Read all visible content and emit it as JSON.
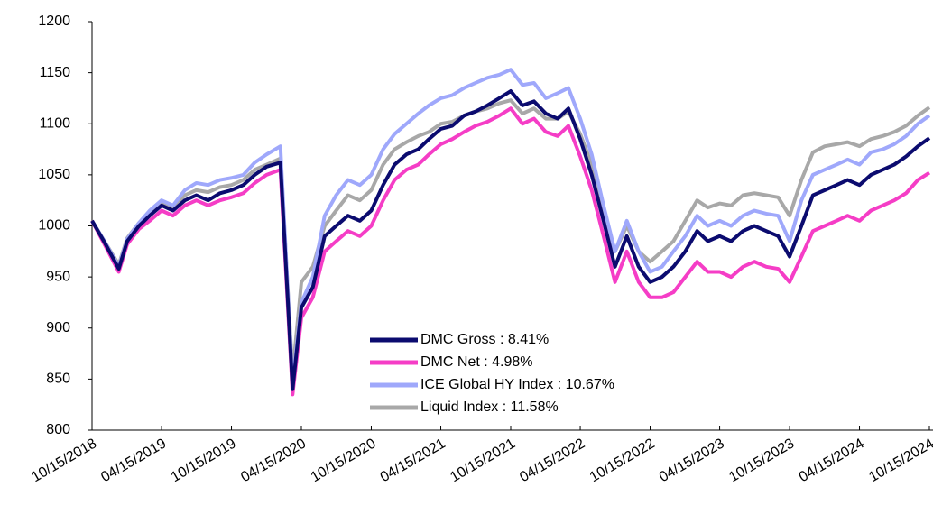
{
  "chart_data": {
    "type": "line",
    "x": [
      "10/15/2018",
      "11/15/2018",
      "12/24/2018",
      "01/15/2019",
      "02/15/2019",
      "03/15/2019",
      "04/15/2019",
      "05/15/2019",
      "06/15/2019",
      "07/15/2019",
      "08/15/2019",
      "09/15/2019",
      "10/15/2019",
      "11/15/2019",
      "12/15/2019",
      "01/15/2020",
      "02/20/2020",
      "03/23/2020",
      "04/15/2020",
      "05/15/2020",
      "06/15/2020",
      "07/15/2020",
      "08/15/2020",
      "09/15/2020",
      "10/15/2020",
      "11/15/2020",
      "12/15/2020",
      "01/15/2021",
      "02/15/2021",
      "03/15/2021",
      "04/15/2021",
      "05/15/2021",
      "06/15/2021",
      "07/15/2021",
      "08/15/2021",
      "09/15/2021",
      "10/15/2021",
      "11/15/2021",
      "12/15/2021",
      "01/15/2022",
      "02/15/2022",
      "03/15/2022",
      "04/15/2022",
      "05/15/2022",
      "06/15/2022",
      "07/15/2022",
      "08/15/2022",
      "09/15/2022",
      "10/15/2022",
      "11/15/2022",
      "12/15/2022",
      "01/15/2023",
      "02/15/2023",
      "03/15/2023",
      "04/15/2023",
      "05/15/2023",
      "06/15/2023",
      "07/15/2023",
      "08/15/2023",
      "09/15/2023",
      "10/15/2023",
      "11/15/2023",
      "12/15/2023",
      "01/15/2024",
      "02/15/2024",
      "03/15/2024",
      "04/15/2024",
      "05/15/2024",
      "06/15/2024",
      "07/15/2024",
      "08/15/2024",
      "09/15/2024",
      "10/15/2024"
    ],
    "series": [
      {
        "name": "DMC Gross : 8.41%",
        "color": "#0b0b6f",
        "values": [
          1005,
          985,
          958,
          985,
          1000,
          1010,
          1020,
          1015,
          1025,
          1030,
          1025,
          1032,
          1035,
          1040,
          1050,
          1058,
          1062,
          840,
          920,
          940,
          990,
          1000,
          1010,
          1005,
          1015,
          1040,
          1060,
          1070,
          1075,
          1085,
          1095,
          1098,
          1108,
          1112,
          1118,
          1125,
          1132,
          1118,
          1122,
          1110,
          1105,
          1115,
          1085,
          1050,
          1005,
          960,
          990,
          960,
          945,
          950,
          960,
          975,
          995,
          985,
          990,
          985,
          995,
          1000,
          995,
          990,
          970,
          1000,
          1030,
          1035,
          1040,
          1045,
          1040,
          1050,
          1055,
          1060,
          1068,
          1078,
          1086
        ]
      },
      {
        "name": "DMC Net : 4.98%",
        "color": "#f53dc6",
        "values": [
          1005,
          983,
          955,
          982,
          997,
          1005,
          1015,
          1010,
          1020,
          1025,
          1020,
          1025,
          1028,
          1032,
          1042,
          1050,
          1055,
          835,
          910,
          930,
          975,
          985,
          995,
          990,
          1000,
          1025,
          1045,
          1055,
          1060,
          1070,
          1080,
          1085,
          1092,
          1098,
          1102,
          1108,
          1115,
          1100,
          1105,
          1092,
          1088,
          1098,
          1068,
          1035,
          990,
          945,
          975,
          945,
          930,
          930,
          935,
          950,
          965,
          955,
          955,
          950,
          960,
          965,
          960,
          958,
          945,
          970,
          995,
          1000,
          1005,
          1010,
          1005,
          1015,
          1020,
          1025,
          1032,
          1045,
          1052
        ]
      },
      {
        "name": "ICE Global HY Index : 10.67%",
        "color": "#9fa8fb",
        "values": [
          1005,
          986,
          960,
          987,
          1003,
          1015,
          1025,
          1020,
          1035,
          1042,
          1040,
          1045,
          1047,
          1050,
          1062,
          1070,
          1078,
          845,
          925,
          950,
          1010,
          1030,
          1045,
          1040,
          1050,
          1075,
          1090,
          1100,
          1110,
          1118,
          1125,
          1128,
          1135,
          1140,
          1145,
          1148,
          1153,
          1138,
          1140,
          1125,
          1130,
          1135,
          1105,
          1070,
          1020,
          975,
          1005,
          975,
          955,
          960,
          975,
          990,
          1010,
          1000,
          1005,
          1000,
          1010,
          1015,
          1012,
          1010,
          985,
          1025,
          1050,
          1055,
          1060,
          1065,
          1060,
          1072,
          1075,
          1080,
          1088,
          1100,
          1108
        ]
      },
      {
        "name": "Liquid Index : 11.58%",
        "color": "#a8a8a8",
        "values": [
          1005,
          986,
          962,
          988,
          1003,
          1013,
          1022,
          1018,
          1030,
          1035,
          1033,
          1038,
          1040,
          1045,
          1055,
          1060,
          1066,
          855,
          945,
          960,
          1000,
          1015,
          1030,
          1025,
          1035,
          1060,
          1075,
          1082,
          1088,
          1092,
          1100,
          1102,
          1108,
          1112,
          1115,
          1120,
          1123,
          1110,
          1115,
          1105,
          1105,
          1112,
          1090,
          1060,
          1015,
          975,
          1000,
          975,
          965,
          975,
          985,
          1005,
          1025,
          1018,
          1022,
          1020,
          1030,
          1032,
          1030,
          1028,
          1010,
          1045,
          1072,
          1078,
          1080,
          1082,
          1078,
          1085,
          1088,
          1092,
          1098,
          1108,
          1116
        ]
      }
    ],
    "xlim": [
      "10/15/2018",
      "10/15/2024"
    ],
    "xticks": [
      "10/15/2018",
      "04/15/2019",
      "10/15/2019",
      "04/15/2020",
      "10/15/2020",
      "04/15/2021",
      "10/15/2021",
      "04/15/2022",
      "10/15/2022",
      "04/15/2023",
      "10/15/2023",
      "04/15/2024",
      "10/15/2024"
    ],
    "ylim": [
      800,
      1200
    ],
    "yticks": [
      800,
      850,
      900,
      950,
      1000,
      1050,
      1100,
      1150,
      1200
    ]
  }
}
